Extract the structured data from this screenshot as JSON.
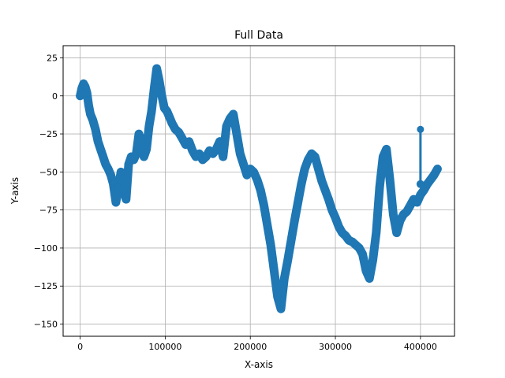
{
  "chart_data": {
    "type": "line",
    "title": "Full Data",
    "xlabel": "X-axis",
    "ylabel": "Y-axis",
    "xlim": [
      -20000,
      440000
    ],
    "ylim": [
      -158,
      33
    ],
    "grid": true,
    "x_ticks": [
      {
        "value": 0,
        "label": "0"
      },
      {
        "value": 100000,
        "label": "100000"
      },
      {
        "value": 200000,
        "label": "200000"
      },
      {
        "value": 300000,
        "label": "300000"
      },
      {
        "value": 400000,
        "label": "400000"
      }
    ],
    "y_ticks": [
      {
        "value": 25,
        "label": "25"
      },
      {
        "value": 0,
        "label": "0"
      },
      {
        "value": -25,
        "label": "−25"
      },
      {
        "value": -50,
        "label": "−50"
      },
      {
        "value": -75,
        "label": "−75"
      },
      {
        "value": -100,
        "label": "−100"
      },
      {
        "value": -125,
        "label": "−125"
      },
      {
        "value": -150,
        "label": "−150"
      }
    ],
    "series": [
      {
        "color": "#1f77b4",
        "marker": "circle",
        "x": [
          0,
          2000,
          4000,
          6000,
          8000,
          10000,
          12000,
          15000,
          18000,
          21000,
          24000,
          27000,
          30000,
          33000,
          36000,
          39000,
          42000,
          45000,
          48000,
          51000,
          54000,
          57000,
          60000,
          63000,
          66000,
          69000,
          72000,
          75000,
          78000,
          81000,
          84000,
          87000,
          90000,
          93000,
          96000,
          99000,
          102000,
          105000,
          108000,
          112000,
          116000,
          120000,
          124000,
          128000,
          132000,
          136000,
          140000,
          144000,
          148000,
          152000,
          156000,
          160000,
          164000,
          168000,
          172000,
          176000,
          180000,
          184000,
          188000,
          192000,
          196000,
          200000,
          204000,
          208000,
          212000,
          216000,
          220000,
          224000,
          228000,
          232000,
          236000,
          240000,
          244000,
          248000,
          252000,
          256000,
          260000,
          264000,
          268000,
          272000,
          276000,
          280000,
          284000,
          288000,
          292000,
          296000,
          300000,
          304000,
          308000,
          312000,
          316000,
          320000,
          324000,
          328000,
          332000,
          336000,
          340000,
          344000,
          348000,
          352000,
          356000,
          360000,
          364000,
          368000,
          372000,
          376000,
          380000,
          384000,
          388000,
          392000,
          396000,
          400000,
          404000,
          408000,
          412000,
          416000,
          420000
        ],
        "y": [
          0,
          5,
          8,
          6,
          2,
          -6,
          -12,
          -16,
          -22,
          -30,
          -35,
          -40,
          -45,
          -48,
          -52,
          -58,
          -70,
          -60,
          -50,
          -62,
          -68,
          -45,
          -40,
          -42,
          -38,
          -25,
          -30,
          -40,
          -35,
          -20,
          -10,
          5,
          18,
          10,
          0,
          -8,
          -10,
          -14,
          -18,
          -22,
          -24,
          -28,
          -32,
          -30,
          -36,
          -40,
          -38,
          -42,
          -40,
          -36,
          -38,
          -35,
          -30,
          -40,
          -20,
          -15,
          -12,
          -25,
          -38,
          -45,
          -52,
          -48,
          -50,
          -55,
          -62,
          -72,
          -85,
          -98,
          -115,
          -132,
          -140,
          -120,
          -108,
          -95,
          -82,
          -70,
          -58,
          -48,
          -42,
          -38,
          -40,
          -48,
          -56,
          -62,
          -68,
          -75,
          -80,
          -86,
          -90,
          -92,
          -95,
          -96,
          -98,
          -100,
          -104,
          -115,
          -120,
          -108,
          -90,
          -60,
          -40,
          -35,
          -55,
          -78,
          -90,
          -82,
          -78,
          -76,
          -72,
          -68,
          -70,
          -65,
          -62,
          -58,
          -55,
          -52,
          -48
        ]
      }
    ],
    "spike": {
      "x": 400000,
      "y_top": -22,
      "y_bottom": -58
    }
  }
}
